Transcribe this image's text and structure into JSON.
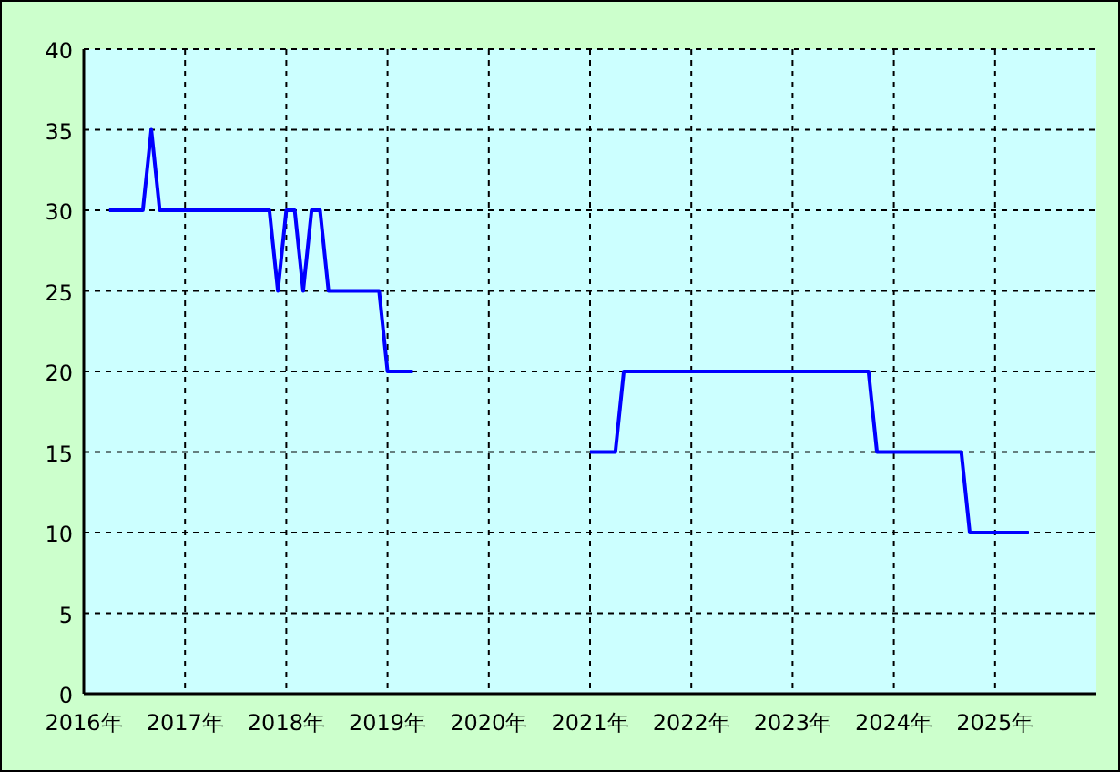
{
  "chart_data": {
    "type": "line",
    "x": [
      "2016-04",
      "2016-08",
      "2016-09",
      "2016-10",
      "2017-11",
      "2017-12",
      "2018-01",
      "2018-02",
      "2018-03",
      "2018-04",
      "2018-05",
      "2018-06",
      "2018-12",
      "2019-01",
      "2019-04",
      "2020-01",
      "2021-01",
      "2021-04",
      "2021-05",
      "2023-10",
      "2023-11",
      "2024-09",
      "2024-10",
      "2025-05"
    ],
    "series": [
      {
        "color": "#0000ff",
        "values": [
          30,
          30,
          35,
          30,
          30,
          25,
          30,
          30,
          25,
          30,
          30,
          25,
          25,
          20,
          20,
          null,
          15,
          15,
          20,
          20,
          15,
          15,
          10,
          10
        ]
      }
    ],
    "xlim": [
      "2016-01",
      "2026-01"
    ],
    "xticks": [
      {
        "value": "2016-01",
        "label": "2016年"
      },
      {
        "value": "2017-01",
        "label": "2017年"
      },
      {
        "value": "2018-01",
        "label": "2018年"
      },
      {
        "value": "2019-01",
        "label": "2019年"
      },
      {
        "value": "2020-01",
        "label": "2020年"
      },
      {
        "value": "2021-01",
        "label": "2021年"
      },
      {
        "value": "2022-01",
        "label": "2022年"
      },
      {
        "value": "2023-01",
        "label": "2023年"
      },
      {
        "value": "2024-01",
        "label": "2024年"
      },
      {
        "value": "2025-01",
        "label": "2025年"
      }
    ],
    "ylim": [
      0,
      40
    ],
    "yticks": [
      0,
      5,
      10,
      15,
      20,
      25,
      30,
      35,
      40
    ],
    "grid": true,
    "marker": "none",
    "line_style": "solid"
  }
}
